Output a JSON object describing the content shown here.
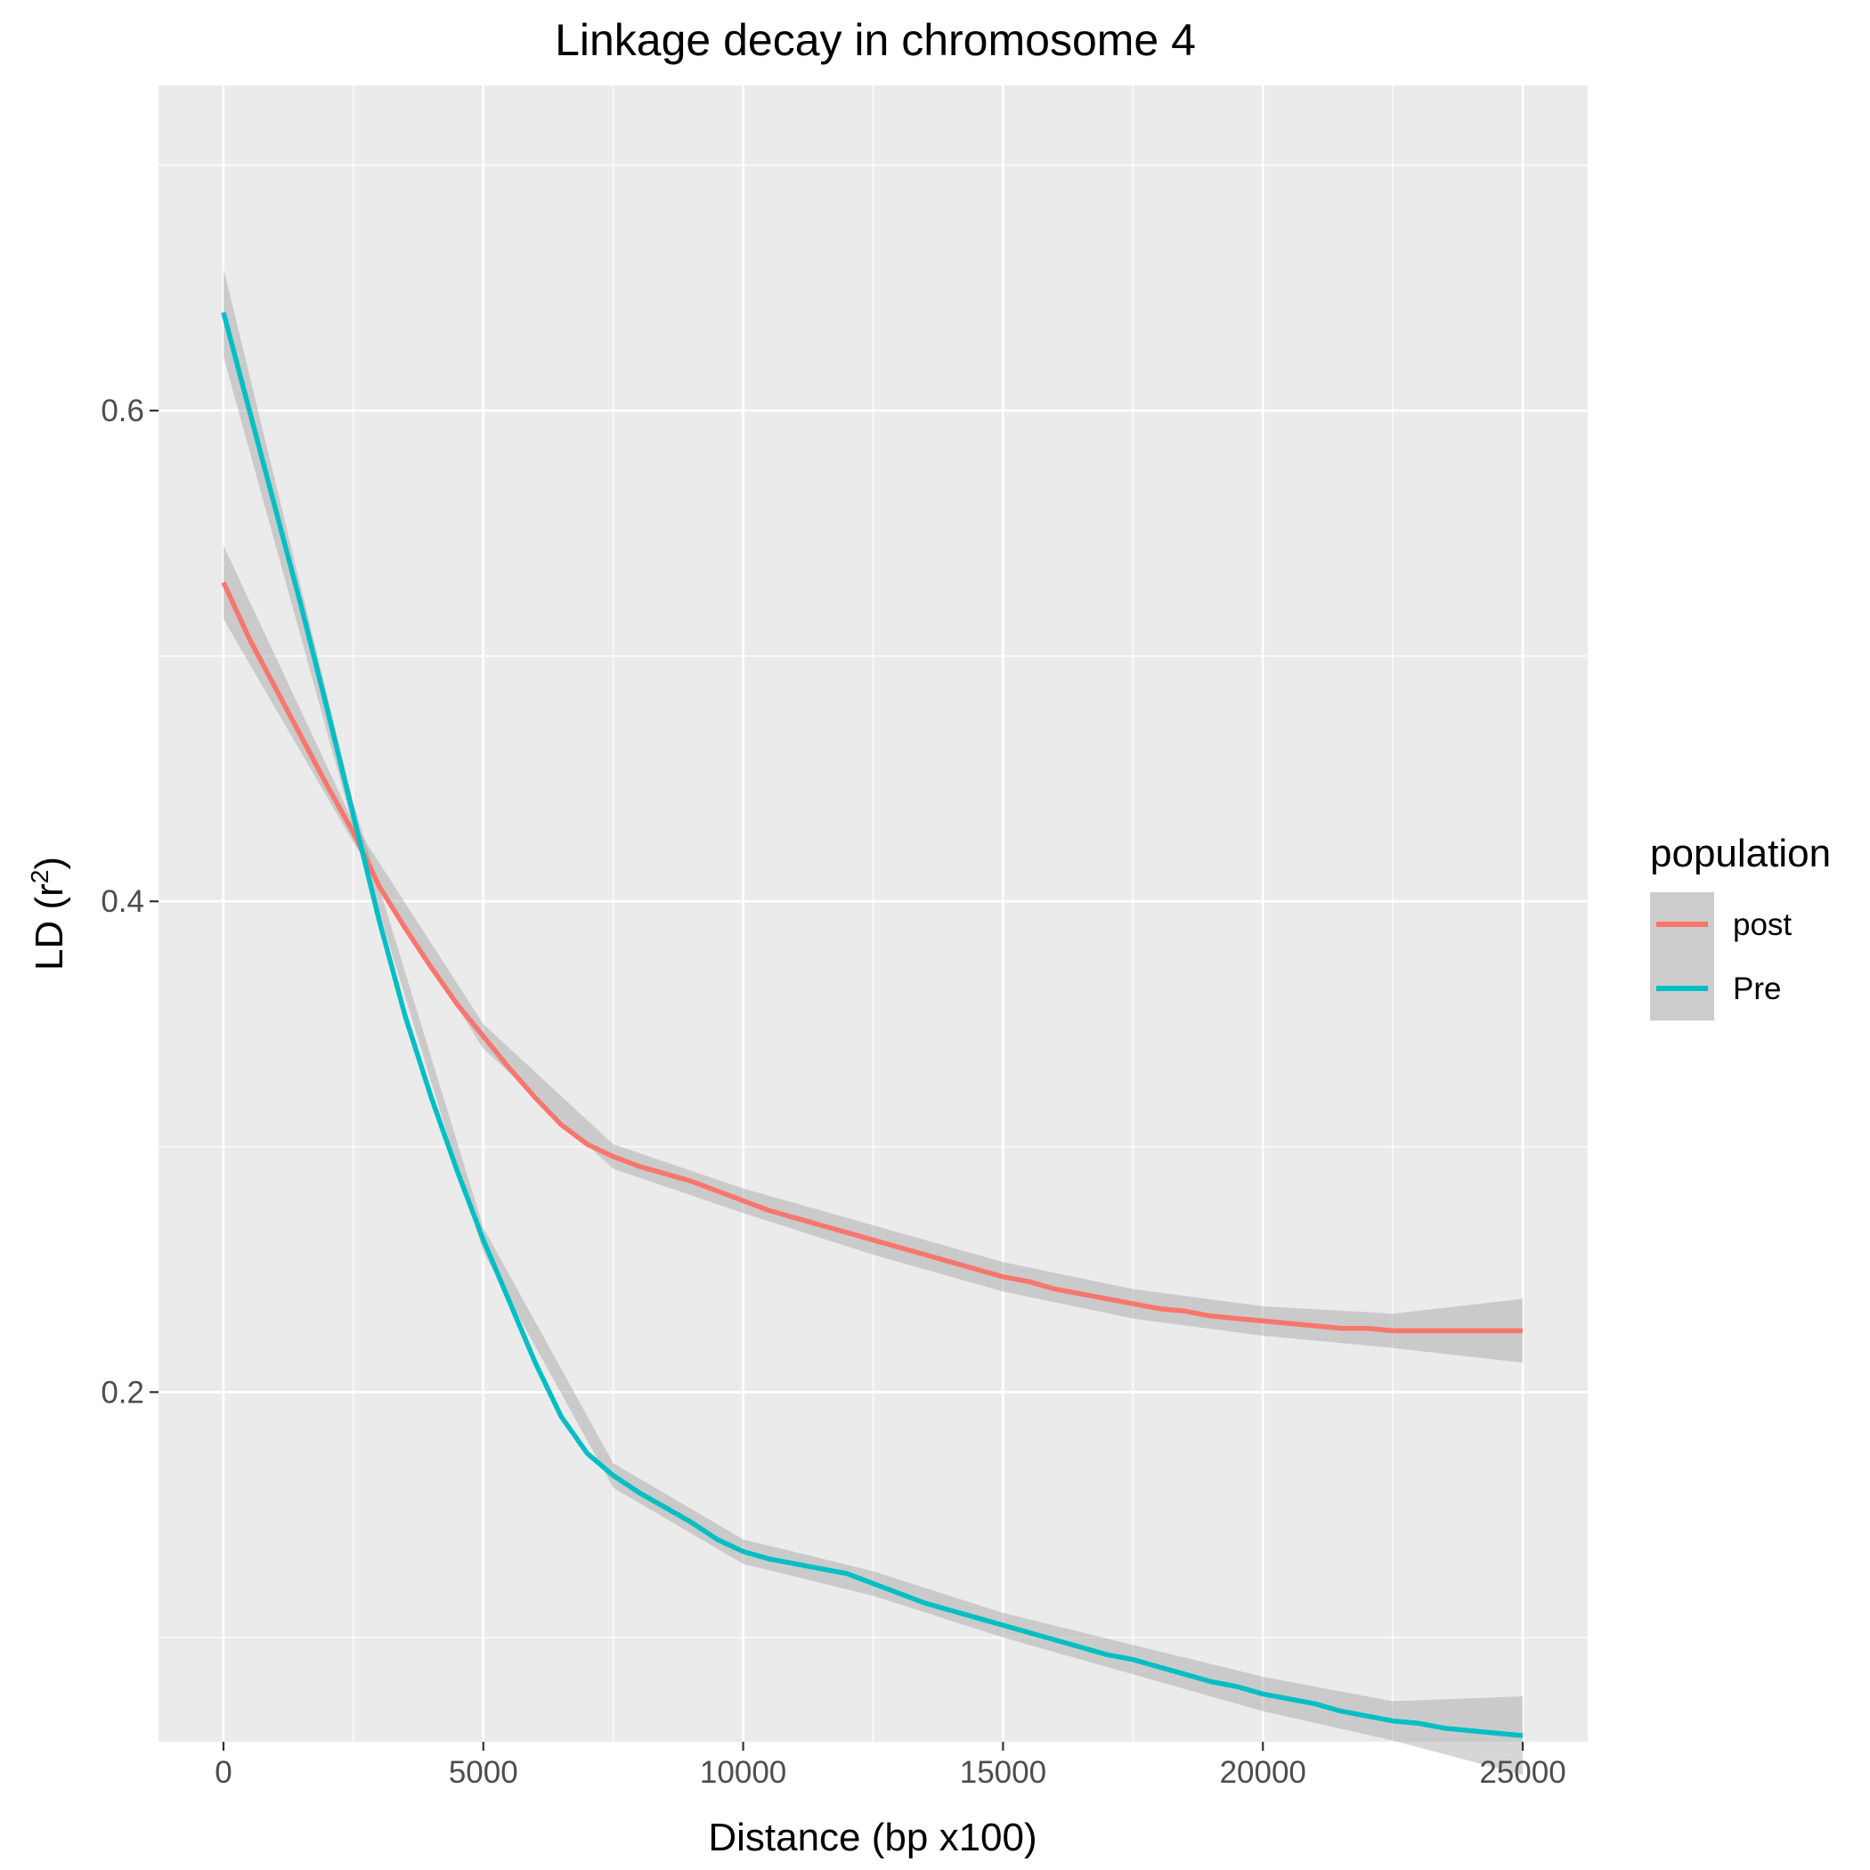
{
  "chart_data": {
    "type": "line",
    "title": "Linkage decay in chromosome  4",
    "xlabel": "Distance (bp x100)",
    "ylabel_main": "LD (r",
    "ylabel_sup": "2",
    "ylabel_close": ")",
    "xlim": [
      -1250,
      26250
    ],
    "ylim": [
      0.0575,
      0.7325
    ],
    "x_ticks": [
      0,
      5000,
      10000,
      15000,
      20000,
      25000
    ],
    "x_tick_labels": [
      "0",
      "5000",
      "10000",
      "15000",
      "20000",
      "25000"
    ],
    "x_minor_ticks": [
      2500,
      7500,
      12500,
      17500,
      22500
    ],
    "y_ticks": [
      0.2,
      0.4,
      0.6
    ],
    "y_tick_labels": [
      "0.2",
      "0.4",
      "0.6"
    ],
    "y_minor_ticks": [
      0.1,
      0.3,
      0.5,
      0.7
    ],
    "grid": true,
    "legend_position": "right",
    "legend_title": "population",
    "series": [
      {
        "name": "post",
        "color": "#F8766D",
        "points": [
          [
            0,
            0.53
          ],
          [
            500,
            0.507
          ],
          [
            1000,
            0.487
          ],
          [
            1500,
            0.467
          ],
          [
            2000,
            0.447
          ],
          [
            2500,
            0.428
          ],
          [
            3000,
            0.406
          ],
          [
            3500,
            0.389
          ],
          [
            4000,
            0.373
          ],
          [
            4500,
            0.358
          ],
          [
            5000,
            0.345
          ],
          [
            5500,
            0.332
          ],
          [
            6000,
            0.32
          ],
          [
            6500,
            0.309
          ],
          [
            7000,
            0.301
          ],
          [
            7500,
            0.296
          ],
          [
            8000,
            0.292
          ],
          [
            8500,
            0.289
          ],
          [
            9000,
            0.286
          ],
          [
            9500,
            0.282
          ],
          [
            10000,
            0.278
          ],
          [
            10500,
            0.274
          ],
          [
            11000,
            0.271
          ],
          [
            11500,
            0.268
          ],
          [
            12000,
            0.265
          ],
          [
            12500,
            0.262
          ],
          [
            13000,
            0.259
          ],
          [
            13500,
            0.256
          ],
          [
            14000,
            0.253
          ],
          [
            14500,
            0.25
          ],
          [
            15000,
            0.247
          ],
          [
            15500,
            0.245
          ],
          [
            16000,
            0.242
          ],
          [
            16500,
            0.24
          ],
          [
            17000,
            0.238
          ],
          [
            17500,
            0.236
          ],
          [
            18000,
            0.234
          ],
          [
            18500,
            0.233
          ],
          [
            19000,
            0.231
          ],
          [
            19500,
            0.23
          ],
          [
            20000,
            0.229
          ],
          [
            20500,
            0.228
          ],
          [
            21000,
            0.227
          ],
          [
            21500,
            0.226
          ],
          [
            22000,
            0.226
          ],
          [
            22500,
            0.225
          ],
          [
            23000,
            0.225
          ],
          [
            23500,
            0.225
          ],
          [
            24000,
            0.225
          ],
          [
            24500,
            0.225
          ],
          [
            25000,
            0.225
          ]
        ],
        "band": [
          [
            0,
            0.545,
            0.515
          ],
          [
            2500,
            0.432,
            0.424
          ],
          [
            5000,
            0.35,
            0.34
          ],
          [
            7500,
            0.301,
            0.291
          ],
          [
            10000,
            0.283,
            0.273
          ],
          [
            12500,
            0.268,
            0.256
          ],
          [
            15000,
            0.253,
            0.241
          ],
          [
            17500,
            0.242,
            0.23
          ],
          [
            20000,
            0.235,
            0.223
          ],
          [
            22500,
            0.232,
            0.218
          ],
          [
            25000,
            0.238,
            0.212
          ]
        ]
      },
      {
        "name": "Pre",
        "color": "#00BFC4",
        "points": [
          [
            0,
            0.64
          ],
          [
            500,
            0.6
          ],
          [
            1000,
            0.56
          ],
          [
            1500,
            0.52
          ],
          [
            2000,
            0.478
          ],
          [
            2500,
            0.435
          ],
          [
            3000,
            0.392
          ],
          [
            3500,
            0.353
          ],
          [
            4000,
            0.32
          ],
          [
            4500,
            0.29
          ],
          [
            5000,
            0.262
          ],
          [
            5500,
            0.237
          ],
          [
            6000,
            0.212
          ],
          [
            6500,
            0.19
          ],
          [
            7000,
            0.175
          ],
          [
            7500,
            0.166
          ],
          [
            8000,
            0.159
          ],
          [
            8500,
            0.153
          ],
          [
            9000,
            0.147
          ],
          [
            9500,
            0.14
          ],
          [
            10000,
            0.135
          ],
          [
            10500,
            0.132
          ],
          [
            11000,
            0.13
          ],
          [
            11500,
            0.128
          ],
          [
            12000,
            0.126
          ],
          [
            12500,
            0.122
          ],
          [
            13000,
            0.118
          ],
          [
            13500,
            0.114
          ],
          [
            14000,
            0.111
          ],
          [
            14500,
            0.108
          ],
          [
            15000,
            0.105
          ],
          [
            15500,
            0.102
          ],
          [
            16000,
            0.099
          ],
          [
            16500,
            0.096
          ],
          [
            17000,
            0.093
          ],
          [
            17500,
            0.091
          ],
          [
            18000,
            0.088
          ],
          [
            18500,
            0.085
          ],
          [
            19000,
            0.082
          ],
          [
            19500,
            0.08
          ],
          [
            20000,
            0.077
          ],
          [
            20500,
            0.075
          ],
          [
            21000,
            0.073
          ],
          [
            21500,
            0.07
          ],
          [
            22000,
            0.068
          ],
          [
            22500,
            0.066
          ],
          [
            23000,
            0.065
          ],
          [
            23500,
            0.063
          ],
          [
            24000,
            0.062
          ],
          [
            24500,
            0.061
          ],
          [
            25000,
            0.06
          ]
        ],
        "band": [
          [
            0,
            0.658,
            0.622
          ],
          [
            2500,
            0.44,
            0.43
          ],
          [
            5000,
            0.267,
            0.257
          ],
          [
            7500,
            0.171,
            0.161
          ],
          [
            10000,
            0.14,
            0.13
          ],
          [
            12500,
            0.127,
            0.117
          ],
          [
            15000,
            0.11,
            0.1
          ],
          [
            17500,
            0.097,
            0.085
          ],
          [
            20000,
            0.084,
            0.07
          ],
          [
            22500,
            0.074,
            0.058
          ],
          [
            25000,
            0.076,
            0.044
          ]
        ]
      }
    ]
  }
}
